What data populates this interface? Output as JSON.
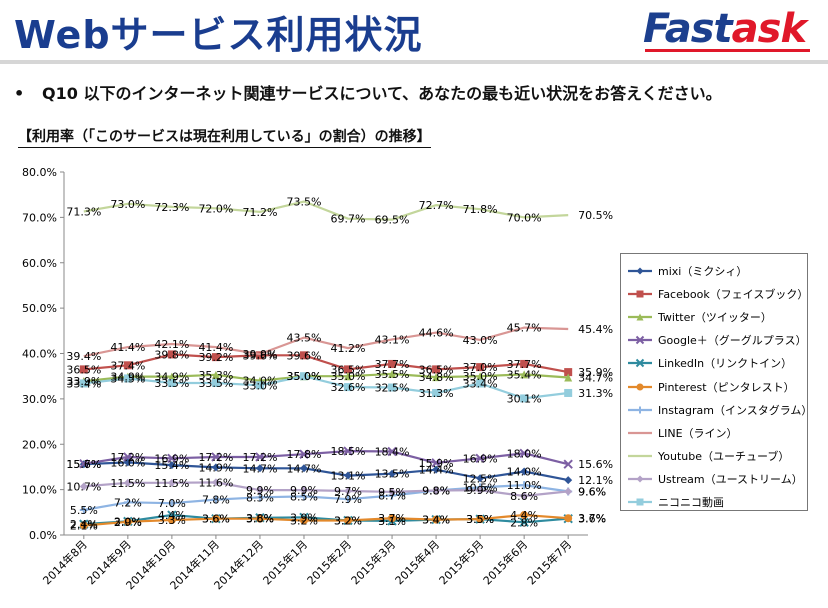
{
  "header": {
    "title": "Webサービス利用状況",
    "logo_part1": "Fast",
    "logo_part2": "ask"
  },
  "question": {
    "bullet": "•",
    "text": "Q10 以下のインターネット関連サービスについて、あなたの最も近い状況をお答えください。"
  },
  "chart_title": "【利用率（「このサービスは現在利用している」の割合）の推移】",
  "chart_data": {
    "type": "line",
    "categories": [
      "2014年8月",
      "2014年9月",
      "2014年10月",
      "2014年11月",
      "2014年12月",
      "2015年1月",
      "2015年2月",
      "2015年3月",
      "2015年4月",
      "2015年5月",
      "2015年6月",
      "2015年7月"
    ],
    "ylim": [
      0,
      80
    ],
    "yticks": [
      "0.0%",
      "10.0%",
      "20.0%",
      "30.0%",
      "40.0%",
      "50.0%",
      "60.0%",
      "70.0%",
      "80.0%"
    ],
    "grid": false,
    "legend_position": "right",
    "series": [
      {
        "name": "mixi（ミクシィ）",
        "color": "#2f5597",
        "marker": "diamond",
        "values": [
          15.6,
          16.0,
          15.4,
          14.9,
          14.7,
          14.7,
          13.1,
          13.5,
          14.4,
          12.5,
          14.0,
          12.1
        ]
      },
      {
        "name": "Facebook（フェイスブック）",
        "color": "#c0504d",
        "marker": "square",
        "values": [
          36.5,
          37.4,
          39.8,
          39.2,
          39.6,
          39.6,
          36.5,
          37.7,
          36.5,
          37.0,
          37.7,
          35.9
        ]
      },
      {
        "name": "Twitter（ツイッター）",
        "color": "#9bbb59",
        "marker": "triangle",
        "values": [
          33.9,
          34.9,
          34.9,
          35.3,
          34.0,
          35.0,
          35.0,
          35.5,
          34.8,
          35.0,
          35.4,
          34.7
        ]
      },
      {
        "name": "Google＋（グーグルプラス）",
        "color": "#7c5fa3",
        "marker": "x",
        "values": [
          15.7,
          17.2,
          16.9,
          17.2,
          17.2,
          17.8,
          18.5,
          18.4,
          15.9,
          16.9,
          18.0,
          15.6
        ]
      },
      {
        "name": "LinkedIn（リンクトイン）",
        "color": "#2e8b9f",
        "marker": "x",
        "values": [
          2.4,
          3.0,
          4.4,
          3.6,
          3.8,
          3.9,
          3.2,
          3.1,
          3.4,
          3.5,
          2.8,
          3.6
        ]
      },
      {
        "name": "Pinterest（ピンタレスト）",
        "color": "#e3892b",
        "marker": "circle",
        "values": [
          2.1,
          2.9,
          3.3,
          3.6,
          3.6,
          3.2,
          3.2,
          3.7,
          3.4,
          3.5,
          4.4,
          3.7
        ]
      },
      {
        "name": "Instagram（インスタグラム）",
        "color": "#8eb4e3",
        "marker": "plus",
        "values": [
          5.5,
          7.2,
          7.0,
          7.8,
          8.3,
          8.5,
          7.9,
          8.7,
          9.8,
          10.5,
          11.0,
          9.6
        ]
      },
      {
        "name": "LINE（ライン）",
        "color": "#d99694",
        "marker": "none",
        "values": [
          39.4,
          41.4,
          42.1,
          41.4,
          39.9,
          43.5,
          41.2,
          43.1,
          44.6,
          43.0,
          45.7,
          45.4
        ]
      },
      {
        "name": "Youtube（ユーチューブ）",
        "color": "#c3d69b",
        "marker": "none",
        "values": [
          71.3,
          73.0,
          72.3,
          72.0,
          71.2,
          73.5,
          69.7,
          69.5,
          72.7,
          71.8,
          70.0,
          70.5
        ]
      },
      {
        "name": "Ustream（ユーストリーム）",
        "color": "#b3a2c7",
        "marker": "diamond",
        "values": [
          10.7,
          11.5,
          11.5,
          11.6,
          9.9,
          9.9,
          9.7,
          9.5,
          9.8,
          9.9,
          8.6,
          9.6
        ]
      },
      {
        "name": "ニコニコ動画",
        "color": "#93cddd",
        "marker": "square",
        "values": [
          33.4,
          34.5,
          33.5,
          33.5,
          33.0,
          35.0,
          32.6,
          32.5,
          31.3,
          33.4,
          30.1,
          31.3
        ]
      }
    ]
  }
}
